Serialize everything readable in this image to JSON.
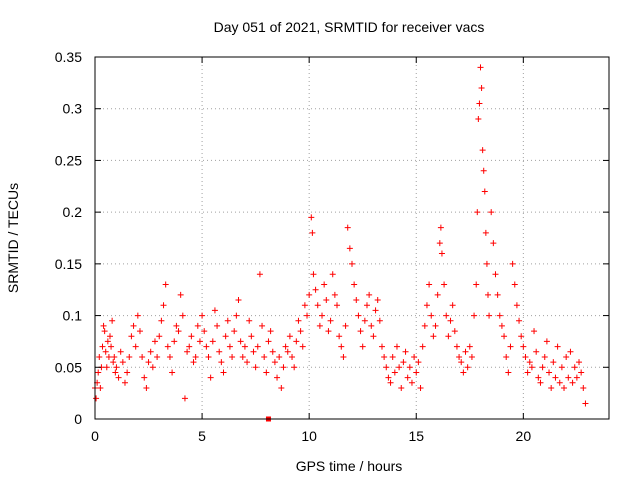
{
  "chart_data": {
    "type": "scatter",
    "title": "Day 051 of 2021, SRMTID for receiver vacs",
    "xlabel": "GPS time / hours",
    "ylabel": "SRMTID / TECUs",
    "xlim": [
      0,
      24
    ],
    "ylim": [
      0,
      0.35
    ],
    "xticks": [
      0,
      5,
      10,
      15,
      20
    ],
    "xtick_labels": [
      "0",
      "5",
      "10",
      "15",
      "20"
    ],
    "yticks": [
      0,
      0.05,
      0.1,
      0.15,
      0.2,
      0.25,
      0.3,
      0.35
    ],
    "ytick_labels": [
      "0",
      "0.05",
      "0.1",
      "0.15",
      "0.2",
      "0.25",
      "0.3",
      "0.35"
    ],
    "grid": true,
    "marker": "+",
    "color": "#ff0000",
    "outlier_marker": {
      "x": 8.1,
      "y": 0.0,
      "shape": "square"
    },
    "series": [
      {
        "name": "SRMTID",
        "points": [
          [
            0.0,
            0.03
          ],
          [
            0.05,
            0.02
          ],
          [
            0.1,
            0.035
          ],
          [
            0.15,
            0.045
          ],
          [
            0.2,
            0.06
          ],
          [
            0.25,
            0.03
          ],
          [
            0.3,
            0.05
          ],
          [
            0.35,
            0.07
          ],
          [
            0.4,
            0.09
          ],
          [
            0.45,
            0.085
          ],
          [
            0.5,
            0.065
          ],
          [
            0.55,
            0.05
          ],
          [
            0.6,
            0.075
          ],
          [
            0.65,
            0.06
          ],
          [
            0.7,
            0.08
          ],
          [
            0.75,
            0.07
          ],
          [
            0.8,
            0.095
          ],
          [
            0.85,
            0.055
          ],
          [
            0.9,
            0.06
          ],
          [
            0.95,
            0.045
          ],
          [
            1.0,
            0.05
          ],
          [
            1.1,
            0.04
          ],
          [
            1.2,
            0.065
          ],
          [
            1.3,
            0.055
          ],
          [
            1.4,
            0.035
          ],
          [
            1.5,
            0.045
          ],
          [
            1.6,
            0.06
          ],
          [
            1.7,
            0.08
          ],
          [
            1.8,
            0.09
          ],
          [
            1.9,
            0.07
          ],
          [
            2.0,
            0.1
          ],
          [
            2.1,
            0.085
          ],
          [
            2.2,
            0.06
          ],
          [
            2.3,
            0.04
          ],
          [
            2.4,
            0.03
          ],
          [
            2.5,
            0.055
          ],
          [
            2.6,
            0.065
          ],
          [
            2.7,
            0.05
          ],
          [
            2.8,
            0.075
          ],
          [
            2.9,
            0.06
          ],
          [
            3.0,
            0.08
          ],
          [
            3.1,
            0.095
          ],
          [
            3.2,
            0.11
          ],
          [
            3.3,
            0.13
          ],
          [
            3.4,
            0.07
          ],
          [
            3.5,
            0.06
          ],
          [
            3.6,
            0.045
          ],
          [
            3.7,
            0.075
          ],
          [
            3.8,
            0.09
          ],
          [
            3.9,
            0.085
          ],
          [
            4.0,
            0.12
          ],
          [
            4.1,
            0.1
          ],
          [
            4.2,
            0.02
          ],
          [
            4.3,
            0.065
          ],
          [
            4.4,
            0.07
          ],
          [
            4.5,
            0.08
          ],
          [
            4.6,
            0.055
          ],
          [
            4.7,
            0.06
          ],
          [
            4.8,
            0.09
          ],
          [
            4.9,
            0.075
          ],
          [
            5.0,
            0.1
          ],
          [
            5.1,
            0.085
          ],
          [
            5.2,
            0.07
          ],
          [
            5.3,
            0.06
          ],
          [
            5.4,
            0.04
          ],
          [
            5.5,
            0.075
          ],
          [
            5.6,
            0.105
          ],
          [
            5.7,
            0.09
          ],
          [
            5.8,
            0.065
          ],
          [
            5.9,
            0.055
          ],
          [
            6.0,
            0.045
          ],
          [
            6.1,
            0.08
          ],
          [
            6.2,
            0.095
          ],
          [
            6.3,
            0.07
          ],
          [
            6.4,
            0.06
          ],
          [
            6.5,
            0.085
          ],
          [
            6.6,
            0.1
          ],
          [
            6.7,
            0.115
          ],
          [
            6.8,
            0.075
          ],
          [
            6.9,
            0.06
          ],
          [
            7.0,
            0.07
          ],
          [
            7.1,
            0.055
          ],
          [
            7.2,
            0.095
          ],
          [
            7.3,
            0.08
          ],
          [
            7.4,
            0.065
          ],
          [
            7.5,
            0.05
          ],
          [
            7.6,
            0.07
          ],
          [
            7.7,
            0.14
          ],
          [
            7.8,
            0.09
          ],
          [
            7.9,
            0.06
          ],
          [
            8.0,
            0.045
          ],
          [
            8.1,
            0.075
          ],
          [
            8.2,
            0.085
          ],
          [
            8.3,
            0.065
          ],
          [
            8.4,
            0.055
          ],
          [
            8.5,
            0.04
          ],
          [
            8.6,
            0.06
          ],
          [
            8.7,
            0.03
          ],
          [
            8.8,
            0.05
          ],
          [
            8.9,
            0.07
          ],
          [
            9.0,
            0.065
          ],
          [
            9.1,
            0.08
          ],
          [
            9.2,
            0.06
          ],
          [
            9.3,
            0.05
          ],
          [
            9.4,
            0.075
          ],
          [
            9.5,
            0.095
          ],
          [
            9.6,
            0.085
          ],
          [
            9.7,
            0.07
          ],
          [
            9.8,
            0.11
          ],
          [
            9.9,
            0.1
          ],
          [
            10.0,
            0.12
          ],
          [
            10.1,
            0.195
          ],
          [
            10.15,
            0.18
          ],
          [
            10.2,
            0.14
          ],
          [
            10.3,
            0.125
          ],
          [
            10.4,
            0.11
          ],
          [
            10.5,
            0.09
          ],
          [
            10.6,
            0.1
          ],
          [
            10.7,
            0.13
          ],
          [
            10.8,
            0.115
          ],
          [
            10.9,
            0.085
          ],
          [
            11.0,
            0.095
          ],
          [
            11.1,
            0.14
          ],
          [
            11.2,
            0.12
          ],
          [
            11.3,
            0.11
          ],
          [
            11.4,
            0.08
          ],
          [
            11.5,
            0.07
          ],
          [
            11.6,
            0.06
          ],
          [
            11.7,
            0.09
          ],
          [
            11.8,
            0.185
          ],
          [
            11.9,
            0.165
          ],
          [
            12.0,
            0.15
          ],
          [
            12.1,
            0.13
          ],
          [
            12.2,
            0.115
          ],
          [
            12.3,
            0.1
          ],
          [
            12.4,
            0.085
          ],
          [
            12.5,
            0.07
          ],
          [
            12.6,
            0.095
          ],
          [
            12.7,
            0.11
          ],
          [
            12.8,
            0.12
          ],
          [
            12.9,
            0.09
          ],
          [
            13.0,
            0.08
          ],
          [
            13.1,
            0.105
          ],
          [
            13.2,
            0.115
          ],
          [
            13.3,
            0.095
          ],
          [
            13.4,
            0.07
          ],
          [
            13.5,
            0.06
          ],
          [
            13.6,
            0.05
          ],
          [
            13.7,
            0.04
          ],
          [
            13.8,
            0.035
          ],
          [
            13.9,
            0.06
          ],
          [
            14.0,
            0.045
          ],
          [
            14.1,
            0.07
          ],
          [
            14.2,
            0.05
          ],
          [
            14.3,
            0.03
          ],
          [
            14.4,
            0.055
          ],
          [
            14.5,
            0.065
          ],
          [
            14.6,
            0.04
          ],
          [
            14.7,
            0.05
          ],
          [
            14.8,
            0.035
          ],
          [
            14.9,
            0.06
          ],
          [
            15.0,
            0.045
          ],
          [
            15.1,
            0.055
          ],
          [
            15.2,
            0.03
          ],
          [
            15.3,
            0.07
          ],
          [
            15.4,
            0.09
          ],
          [
            15.5,
            0.11
          ],
          [
            15.6,
            0.13
          ],
          [
            15.7,
            0.1
          ],
          [
            15.8,
            0.08
          ],
          [
            15.9,
            0.09
          ],
          [
            16.0,
            0.12
          ],
          [
            16.1,
            0.17
          ],
          [
            16.15,
            0.185
          ],
          [
            16.2,
            0.16
          ],
          [
            16.3,
            0.13
          ],
          [
            16.4,
            0.1
          ],
          [
            16.5,
            0.08
          ],
          [
            16.6,
            0.095
          ],
          [
            16.7,
            0.11
          ],
          [
            16.8,
            0.085
          ],
          [
            16.9,
            0.07
          ],
          [
            17.0,
            0.06
          ],
          [
            17.1,
            0.055
          ],
          [
            17.2,
            0.045
          ],
          [
            17.3,
            0.065
          ],
          [
            17.4,
            0.05
          ],
          [
            17.5,
            0.07
          ],
          [
            17.6,
            0.06
          ],
          [
            17.7,
            0.1
          ],
          [
            17.8,
            0.13
          ],
          [
            17.85,
            0.2
          ],
          [
            17.9,
            0.29
          ],
          [
            17.95,
            0.305
          ],
          [
            18.0,
            0.34
          ],
          [
            18.05,
            0.32
          ],
          [
            18.1,
            0.26
          ],
          [
            18.15,
            0.24
          ],
          [
            18.2,
            0.22
          ],
          [
            18.25,
            0.18
          ],
          [
            18.3,
            0.15
          ],
          [
            18.35,
            0.12
          ],
          [
            18.4,
            0.1
          ],
          [
            18.5,
            0.2
          ],
          [
            18.6,
            0.17
          ],
          [
            18.7,
            0.14
          ],
          [
            18.8,
            0.12
          ],
          [
            18.9,
            0.1
          ],
          [
            19.0,
            0.09
          ],
          [
            19.1,
            0.08
          ],
          [
            19.2,
            0.06
          ],
          [
            19.3,
            0.045
          ],
          [
            19.4,
            0.07
          ],
          [
            19.5,
            0.15
          ],
          [
            19.6,
            0.13
          ],
          [
            19.7,
            0.11
          ],
          [
            19.8,
            0.095
          ],
          [
            19.9,
            0.08
          ],
          [
            20.0,
            0.07
          ],
          [
            20.1,
            0.06
          ],
          [
            20.2,
            0.045
          ],
          [
            20.3,
            0.055
          ],
          [
            20.4,
            0.05
          ],
          [
            20.5,
            0.085
          ],
          [
            20.6,
            0.065
          ],
          [
            20.7,
            0.04
          ],
          [
            20.8,
            0.035
          ],
          [
            20.9,
            0.05
          ],
          [
            21.0,
            0.06
          ],
          [
            21.1,
            0.075
          ],
          [
            21.2,
            0.045
          ],
          [
            21.3,
            0.03
          ],
          [
            21.4,
            0.055
          ],
          [
            21.5,
            0.04
          ],
          [
            21.6,
            0.07
          ],
          [
            21.7,
            0.035
          ],
          [
            21.8,
            0.05
          ],
          [
            21.9,
            0.03
          ],
          [
            22.0,
            0.06
          ],
          [
            22.1,
            0.04
          ],
          [
            22.2,
            0.065
          ],
          [
            22.3,
            0.035
          ],
          [
            22.4,
            0.05
          ],
          [
            22.5,
            0.04
          ],
          [
            22.6,
            0.055
          ],
          [
            22.7,
            0.045
          ],
          [
            22.8,
            0.03
          ],
          [
            22.9,
            0.015
          ]
        ]
      }
    ]
  }
}
